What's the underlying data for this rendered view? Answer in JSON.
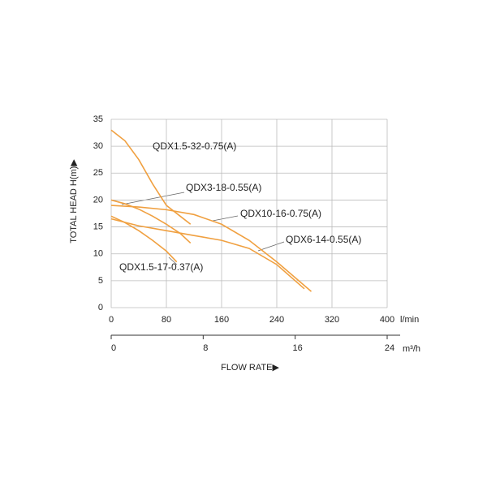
{
  "chart_data": {
    "type": "line",
    "y_label": "TOTAL HEAD H(m)▶",
    "x_label": "FLOW RATE▶",
    "x_unit": "l/min",
    "x2_unit": "m³/h",
    "xlim": [
      0,
      400
    ],
    "xticks": [
      0,
      80,
      160,
      240,
      320,
      400
    ],
    "x2lim": [
      0,
      24
    ],
    "x2ticks": [
      0,
      8,
      16,
      24
    ],
    "ylim": [
      0,
      35
    ],
    "yticks": [
      0,
      5,
      10,
      15,
      20,
      25,
      30,
      35
    ],
    "grid": true,
    "series": [
      {
        "name": "QDX1.5-32-0.75(A)",
        "color": "#f0a040",
        "x": [
          0,
          20,
          40,
          60,
          80,
          100,
          115
        ],
        "values": [
          33,
          31,
          27.5,
          23,
          19,
          17,
          15.5
        ]
      },
      {
        "name": "QDX3-18-0.55(A)",
        "color": "#f0a040",
        "x": [
          0,
          20,
          40,
          60,
          80,
          100,
          115
        ],
        "values": [
          20,
          19.3,
          18.3,
          17,
          15.5,
          13.8,
          12
        ]
      },
      {
        "name": "QDX10-16-0.75(A)",
        "color": "#f0a040",
        "x": [
          0,
          40,
          80,
          120,
          160,
          200,
          240,
          290
        ],
        "values": [
          19,
          18.7,
          18.2,
          17.3,
          15.5,
          12.5,
          8.5,
          3
        ]
      },
      {
        "name": "QDX6-14-0.55(A)",
        "color": "#f0a040",
        "x": [
          0,
          40,
          80,
          120,
          160,
          200,
          240,
          280
        ],
        "values": [
          16.5,
          15.2,
          14.3,
          13.4,
          12.5,
          11,
          8,
          3.5
        ]
      },
      {
        "name": "QDX1.5-17-0.37(A)",
        "color": "#f0a040",
        "x": [
          0,
          20,
          40,
          60,
          80,
          95
        ],
        "values": [
          17,
          15.8,
          14.3,
          12.5,
          10.5,
          8.5
        ]
      }
    ]
  }
}
